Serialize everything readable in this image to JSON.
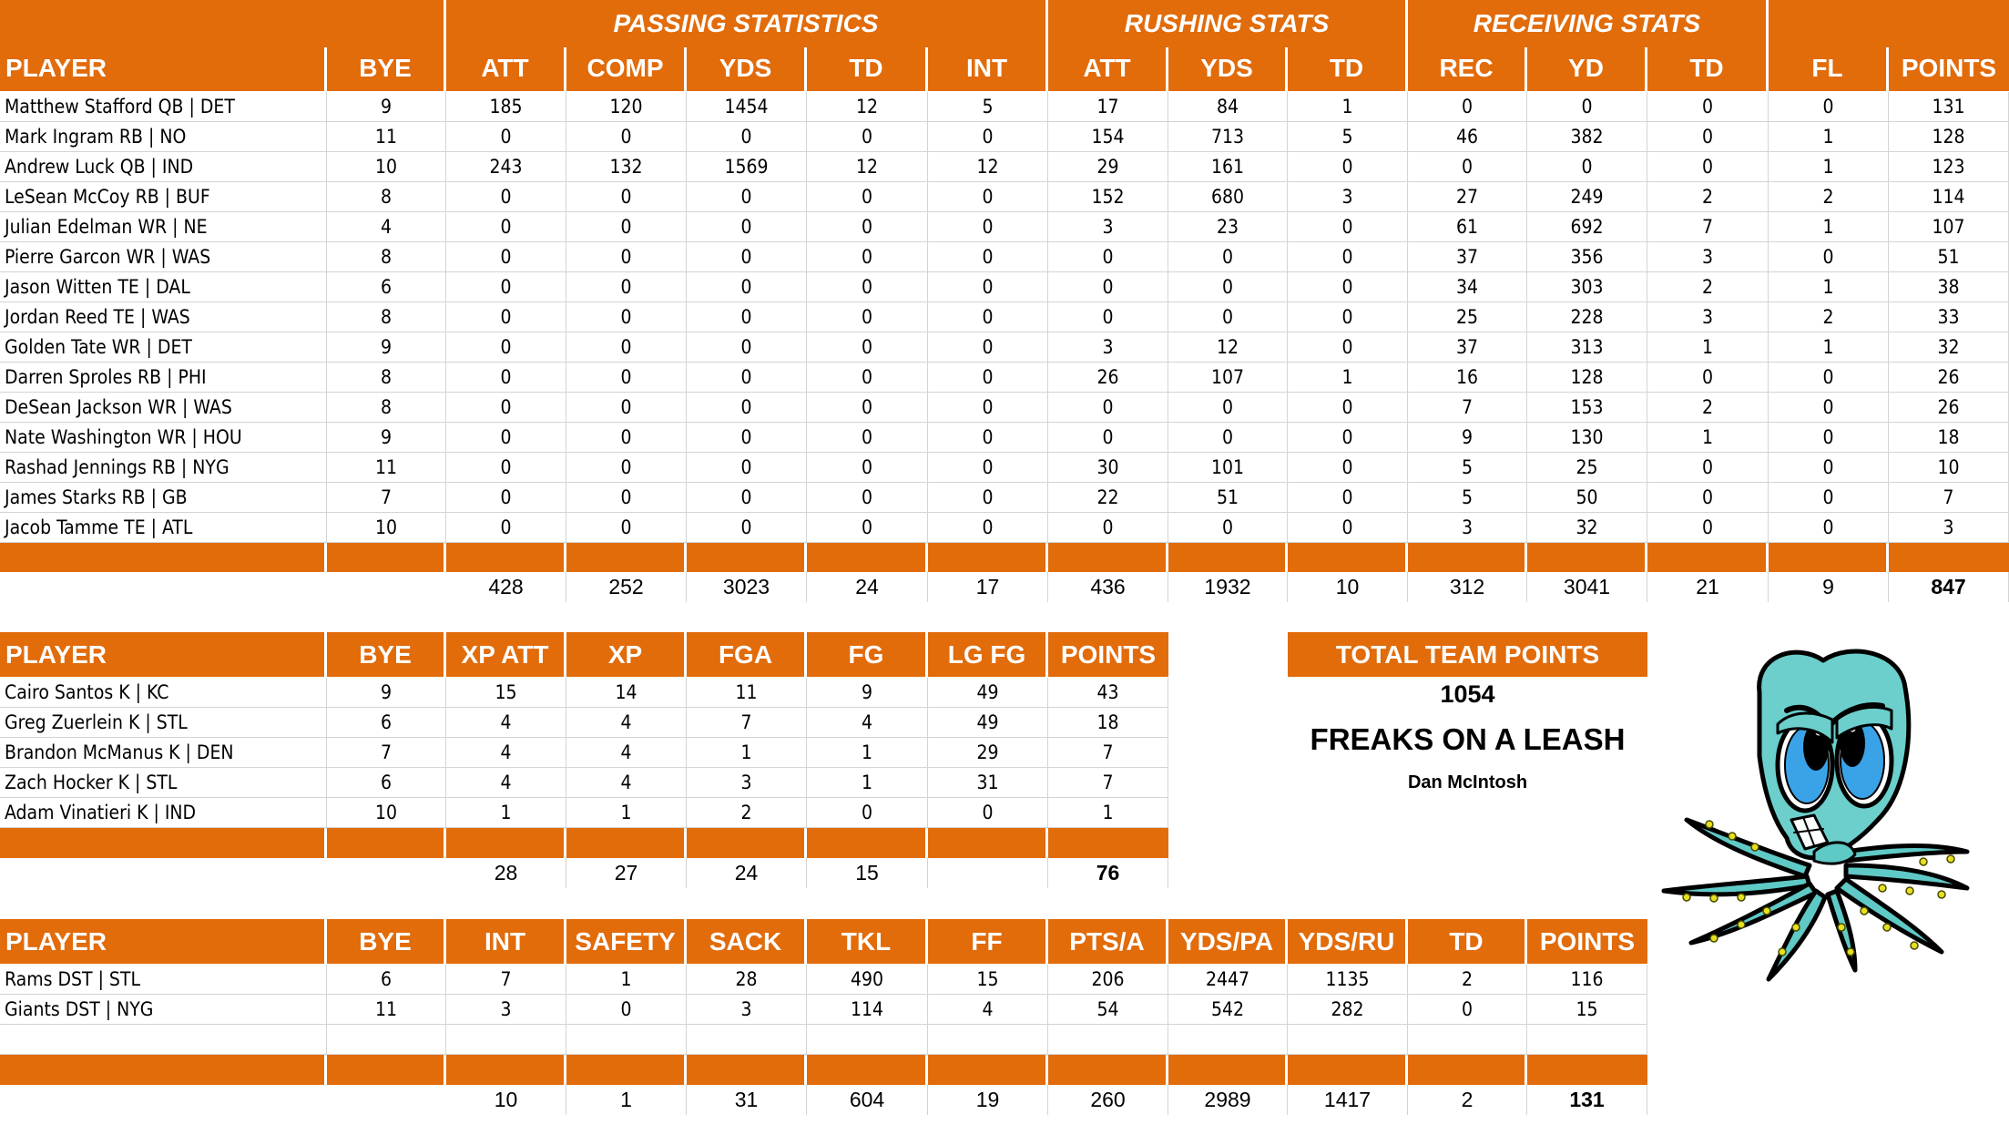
{
  "colors": {
    "accent": "#E26B0A",
    "grid": "#d4d4d4",
    "header_text": "#ffffff"
  },
  "offense": {
    "groups": [
      {
        "label": ""
      },
      {
        "label": "PASSING STATISTICS"
      },
      {
        "label": "RUSHING STATS"
      },
      {
        "label": "RECEIVING STATS"
      },
      {
        "label": ""
      }
    ],
    "columns": [
      "PLAYER",
      "BYE",
      "ATT",
      "COMP",
      "YDS",
      "TD",
      "INT",
      "ATT",
      "YDS",
      "TD",
      "REC",
      "YD",
      "TD",
      "FL",
      "POINTS"
    ],
    "rows": [
      [
        "Matthew Stafford QB | DET",
        "9",
        "185",
        "120",
        "1454",
        "12",
        "5",
        "17",
        "84",
        "1",
        "0",
        "0",
        "0",
        "0",
        "131"
      ],
      [
        "Mark Ingram RB | NO",
        "11",
        "0",
        "0",
        "0",
        "0",
        "0",
        "154",
        "713",
        "5",
        "46",
        "382",
        "0",
        "1",
        "128"
      ],
      [
        "Andrew Luck QB | IND",
        "10",
        "243",
        "132",
        "1569",
        "12",
        "12",
        "29",
        "161",
        "0",
        "0",
        "0",
        "0",
        "1",
        "123"
      ],
      [
        "LeSean McCoy RB | BUF",
        "8",
        "0",
        "0",
        "0",
        "0",
        "0",
        "152",
        "680",
        "3",
        "27",
        "249",
        "2",
        "2",
        "114"
      ],
      [
        "Julian Edelman WR | NE",
        "4",
        "0",
        "0",
        "0",
        "0",
        "0",
        "3",
        "23",
        "0",
        "61",
        "692",
        "7",
        "1",
        "107"
      ],
      [
        "Pierre Garcon WR | WAS",
        "8",
        "0",
        "0",
        "0",
        "0",
        "0",
        "0",
        "0",
        "0",
        "37",
        "356",
        "3",
        "0",
        "51"
      ],
      [
        "Jason Witten TE | DAL",
        "6",
        "0",
        "0",
        "0",
        "0",
        "0",
        "0",
        "0",
        "0",
        "34",
        "303",
        "2",
        "1",
        "38"
      ],
      [
        "Jordan Reed TE | WAS",
        "8",
        "0",
        "0",
        "0",
        "0",
        "0",
        "0",
        "0",
        "0",
        "25",
        "228",
        "3",
        "2",
        "33"
      ],
      [
        "Golden Tate WR | DET",
        "9",
        "0",
        "0",
        "0",
        "0",
        "0",
        "3",
        "12",
        "0",
        "37",
        "313",
        "1",
        "1",
        "32"
      ],
      [
        "Darren Sproles RB | PHI",
        "8",
        "0",
        "0",
        "0",
        "0",
        "0",
        "26",
        "107",
        "1",
        "16",
        "128",
        "0",
        "0",
        "26"
      ],
      [
        "DeSean Jackson WR | WAS",
        "8",
        "0",
        "0",
        "0",
        "0",
        "0",
        "0",
        "0",
        "0",
        "7",
        "153",
        "2",
        "0",
        "26"
      ],
      [
        "Nate Washington WR | HOU",
        "9",
        "0",
        "0",
        "0",
        "0",
        "0",
        "0",
        "0",
        "0",
        "9",
        "130",
        "1",
        "0",
        "18"
      ],
      [
        "Rashad Jennings RB | NYG",
        "11",
        "0",
        "0",
        "0",
        "0",
        "0",
        "30",
        "101",
        "0",
        "5",
        "25",
        "0",
        "0",
        "10"
      ],
      [
        "James Starks RB | GB",
        "7",
        "0",
        "0",
        "0",
        "0",
        "0",
        "22",
        "51",
        "0",
        "5",
        "50",
        "0",
        "0",
        "7"
      ],
      [
        "Jacob Tamme TE | ATL",
        "10",
        "0",
        "0",
        "0",
        "0",
        "0",
        "0",
        "0",
        "0",
        "3",
        "32",
        "0",
        "0",
        "3"
      ]
    ],
    "totals": [
      "",
      "",
      "428",
      "252",
      "3023",
      "24",
      "17",
      "436",
      "1932",
      "10",
      "312",
      "3041",
      "21",
      "9",
      "847"
    ]
  },
  "kickers": {
    "columns": [
      "PLAYER",
      "BYE",
      "XP ATT",
      "XP",
      "FGA",
      "FG",
      "LG FG",
      "POINTS"
    ],
    "rows": [
      [
        "Cairo Santos K | KC",
        "9",
        "15",
        "14",
        "11",
        "9",
        "49",
        "43"
      ],
      [
        "Greg Zuerlein K | STL",
        "6",
        "4",
        "4",
        "7",
        "4",
        "49",
        "18"
      ],
      [
        "Brandon McManus K | DEN",
        "7",
        "4",
        "4",
        "1",
        "1",
        "29",
        "7"
      ],
      [
        "Zach Hocker K | STL",
        "6",
        "4",
        "4",
        "3",
        "1",
        "31",
        "7"
      ],
      [
        "Adam Vinatieri K | IND",
        "10",
        "1",
        "1",
        "2",
        "0",
        "0",
        "1"
      ]
    ],
    "totals": [
      "",
      "",
      "28",
      "27",
      "24",
      "15",
      "",
      "76"
    ]
  },
  "defense": {
    "columns": [
      "PLAYER",
      "BYE",
      "INT",
      "SAFETY",
      "SACK",
      "TKL",
      "FF",
      "PTS/A",
      "YDS/PA",
      "YDS/RU",
      "TD",
      "POINTS"
    ],
    "rows": [
      [
        "Rams DST | STL",
        "6",
        "7",
        "1",
        "28",
        "490",
        "15",
        "206",
        "2447",
        "1135",
        "2",
        "116"
      ],
      [
        "Giants DST | NYG",
        "11",
        "3",
        "0",
        "3",
        "114",
        "4",
        "54",
        "542",
        "282",
        "0",
        "15"
      ],
      [
        "",
        "",
        "",
        "",
        "",
        "",
        "",
        "",
        "",
        "",
        "",
        ""
      ]
    ],
    "totals": [
      "",
      "",
      "10",
      "1",
      "31",
      "604",
      "19",
      "260",
      "2989",
      "1417",
      "2",
      "131"
    ]
  },
  "team": {
    "total_label": "TOTAL TEAM POINTS",
    "total_points": "1054",
    "team_name": "FREAKS ON A LEASH",
    "owner": "Dan McIntosh",
    "mascot_icon": "octopus-mascot-icon"
  }
}
